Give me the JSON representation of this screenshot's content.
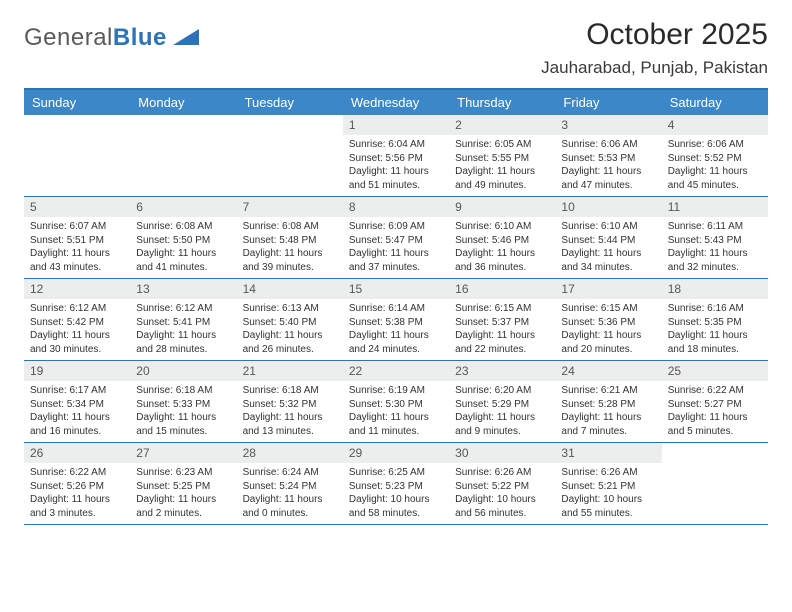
{
  "logo": {
    "word1": "General",
    "word2": "Blue"
  },
  "title": "October 2025",
  "location": "Jauharabad, Punjab, Pakistan",
  "colors": {
    "header_bg": "#3b87c8",
    "header_text": "#ffffff",
    "border": "#2d73b8",
    "num_bg": "#eceded",
    "num_text": "#575757",
    "body_text": "#333333"
  },
  "days_of_week": [
    "Sunday",
    "Monday",
    "Tuesday",
    "Wednesday",
    "Thursday",
    "Friday",
    "Saturday"
  ],
  "weeks": [
    [
      {
        "n": "",
        "sr": "",
        "ss": "",
        "dl": ""
      },
      {
        "n": "",
        "sr": "",
        "ss": "",
        "dl": ""
      },
      {
        "n": "",
        "sr": "",
        "ss": "",
        "dl": ""
      },
      {
        "n": "1",
        "sr": "Sunrise: 6:04 AM",
        "ss": "Sunset: 5:56 PM",
        "dl": "Daylight: 11 hours and 51 minutes."
      },
      {
        "n": "2",
        "sr": "Sunrise: 6:05 AM",
        "ss": "Sunset: 5:55 PM",
        "dl": "Daylight: 11 hours and 49 minutes."
      },
      {
        "n": "3",
        "sr": "Sunrise: 6:06 AM",
        "ss": "Sunset: 5:53 PM",
        "dl": "Daylight: 11 hours and 47 minutes."
      },
      {
        "n": "4",
        "sr": "Sunrise: 6:06 AM",
        "ss": "Sunset: 5:52 PM",
        "dl": "Daylight: 11 hours and 45 minutes."
      }
    ],
    [
      {
        "n": "5",
        "sr": "Sunrise: 6:07 AM",
        "ss": "Sunset: 5:51 PM",
        "dl": "Daylight: 11 hours and 43 minutes."
      },
      {
        "n": "6",
        "sr": "Sunrise: 6:08 AM",
        "ss": "Sunset: 5:50 PM",
        "dl": "Daylight: 11 hours and 41 minutes."
      },
      {
        "n": "7",
        "sr": "Sunrise: 6:08 AM",
        "ss": "Sunset: 5:48 PM",
        "dl": "Daylight: 11 hours and 39 minutes."
      },
      {
        "n": "8",
        "sr": "Sunrise: 6:09 AM",
        "ss": "Sunset: 5:47 PM",
        "dl": "Daylight: 11 hours and 37 minutes."
      },
      {
        "n": "9",
        "sr": "Sunrise: 6:10 AM",
        "ss": "Sunset: 5:46 PM",
        "dl": "Daylight: 11 hours and 36 minutes."
      },
      {
        "n": "10",
        "sr": "Sunrise: 6:10 AM",
        "ss": "Sunset: 5:44 PM",
        "dl": "Daylight: 11 hours and 34 minutes."
      },
      {
        "n": "11",
        "sr": "Sunrise: 6:11 AM",
        "ss": "Sunset: 5:43 PM",
        "dl": "Daylight: 11 hours and 32 minutes."
      }
    ],
    [
      {
        "n": "12",
        "sr": "Sunrise: 6:12 AM",
        "ss": "Sunset: 5:42 PM",
        "dl": "Daylight: 11 hours and 30 minutes."
      },
      {
        "n": "13",
        "sr": "Sunrise: 6:12 AM",
        "ss": "Sunset: 5:41 PM",
        "dl": "Daylight: 11 hours and 28 minutes."
      },
      {
        "n": "14",
        "sr": "Sunrise: 6:13 AM",
        "ss": "Sunset: 5:40 PM",
        "dl": "Daylight: 11 hours and 26 minutes."
      },
      {
        "n": "15",
        "sr": "Sunrise: 6:14 AM",
        "ss": "Sunset: 5:38 PM",
        "dl": "Daylight: 11 hours and 24 minutes."
      },
      {
        "n": "16",
        "sr": "Sunrise: 6:15 AM",
        "ss": "Sunset: 5:37 PM",
        "dl": "Daylight: 11 hours and 22 minutes."
      },
      {
        "n": "17",
        "sr": "Sunrise: 6:15 AM",
        "ss": "Sunset: 5:36 PM",
        "dl": "Daylight: 11 hours and 20 minutes."
      },
      {
        "n": "18",
        "sr": "Sunrise: 6:16 AM",
        "ss": "Sunset: 5:35 PM",
        "dl": "Daylight: 11 hours and 18 minutes."
      }
    ],
    [
      {
        "n": "19",
        "sr": "Sunrise: 6:17 AM",
        "ss": "Sunset: 5:34 PM",
        "dl": "Daylight: 11 hours and 16 minutes."
      },
      {
        "n": "20",
        "sr": "Sunrise: 6:18 AM",
        "ss": "Sunset: 5:33 PM",
        "dl": "Daylight: 11 hours and 15 minutes."
      },
      {
        "n": "21",
        "sr": "Sunrise: 6:18 AM",
        "ss": "Sunset: 5:32 PM",
        "dl": "Daylight: 11 hours and 13 minutes."
      },
      {
        "n": "22",
        "sr": "Sunrise: 6:19 AM",
        "ss": "Sunset: 5:30 PM",
        "dl": "Daylight: 11 hours and 11 minutes."
      },
      {
        "n": "23",
        "sr": "Sunrise: 6:20 AM",
        "ss": "Sunset: 5:29 PM",
        "dl": "Daylight: 11 hours and 9 minutes."
      },
      {
        "n": "24",
        "sr": "Sunrise: 6:21 AM",
        "ss": "Sunset: 5:28 PM",
        "dl": "Daylight: 11 hours and 7 minutes."
      },
      {
        "n": "25",
        "sr": "Sunrise: 6:22 AM",
        "ss": "Sunset: 5:27 PM",
        "dl": "Daylight: 11 hours and 5 minutes."
      }
    ],
    [
      {
        "n": "26",
        "sr": "Sunrise: 6:22 AM",
        "ss": "Sunset: 5:26 PM",
        "dl": "Daylight: 11 hours and 3 minutes."
      },
      {
        "n": "27",
        "sr": "Sunrise: 6:23 AM",
        "ss": "Sunset: 5:25 PM",
        "dl": "Daylight: 11 hours and 2 minutes."
      },
      {
        "n": "28",
        "sr": "Sunrise: 6:24 AM",
        "ss": "Sunset: 5:24 PM",
        "dl": "Daylight: 11 hours and 0 minutes."
      },
      {
        "n": "29",
        "sr": "Sunrise: 6:25 AM",
        "ss": "Sunset: 5:23 PM",
        "dl": "Daylight: 10 hours and 58 minutes."
      },
      {
        "n": "30",
        "sr": "Sunrise: 6:26 AM",
        "ss": "Sunset: 5:22 PM",
        "dl": "Daylight: 10 hours and 56 minutes."
      },
      {
        "n": "31",
        "sr": "Sunrise: 6:26 AM",
        "ss": "Sunset: 5:21 PM",
        "dl": "Daylight: 10 hours and 55 minutes."
      },
      {
        "n": "",
        "sr": "",
        "ss": "",
        "dl": ""
      }
    ]
  ]
}
